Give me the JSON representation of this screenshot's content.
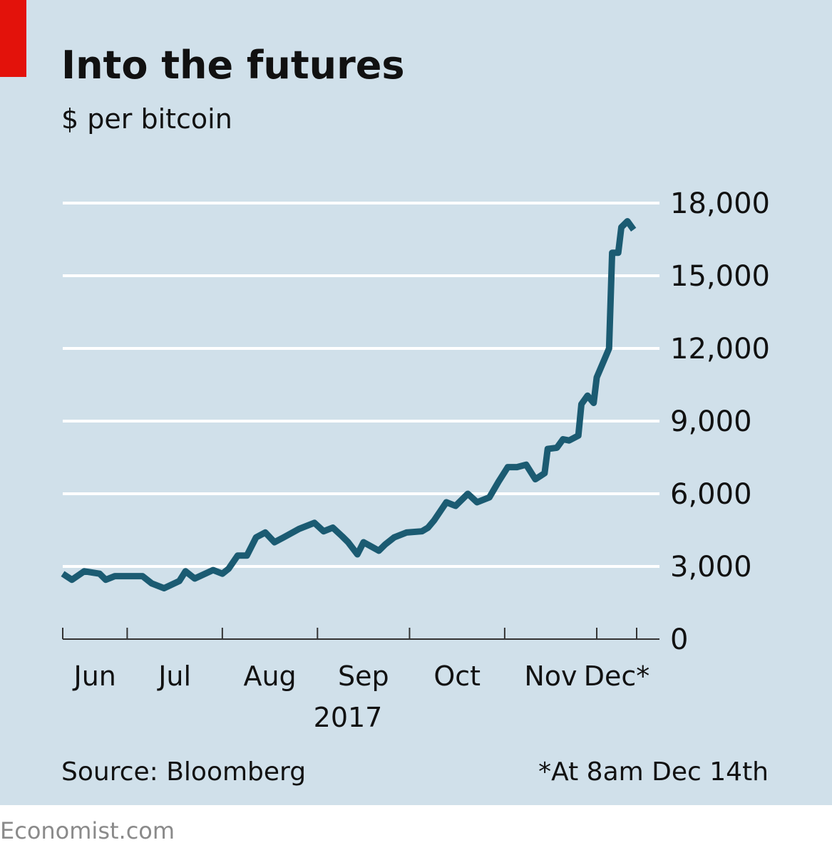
{
  "chart_data": {
    "type": "line",
    "title": "Into the futures",
    "subtitle": "$ per bitcoin",
    "source": "Source: Bloomberg",
    "note": "*At 8am Dec 14th",
    "year_label": "2017",
    "month_labels": [
      "Jun",
      "Jul",
      "Aug",
      "Sep",
      "Oct",
      "Nov",
      "Dec*"
    ],
    "xlim": [
      161,
      348
    ],
    "xticks": [
      161,
      182,
      213,
      244,
      274,
      305,
      335,
      348
    ],
    "ylim": [
      0,
      18000
    ],
    "yticks": [
      0,
      {
        "value": 3000,
        "label": "3,000"
      },
      {
        "value": 6000,
        "label": "6,000"
      },
      {
        "value": 9000,
        "label": "9,000"
      },
      {
        "value": 12000,
        "label": "12,000"
      },
      {
        "value": 15000,
        "label": "15,000"
      },
      {
        "value": 18000,
        "label": "18,000"
      }
    ],
    "grid": true,
    "series": [
      {
        "color": "#1b5b72",
        "x": [
          161,
          164,
          168,
          173,
          175,
          178,
          182,
          187,
          190,
          194,
          199,
          201,
          204,
          210,
          213,
          215,
          218,
          221,
          224,
          227,
          230,
          233,
          238,
          243,
          246,
          249,
          252,
          254,
          257,
          259,
          264,
          266,
          269,
          273,
          278,
          280,
          282,
          286,
          289,
          293,
          296,
          300,
          303,
          306,
          309,
          312,
          315,
          318,
          319,
          322,
          324,
          326,
          329,
          330,
          332,
          334,
          335,
          338,
          339,
          340,
          342,
          343,
          345,
          347
        ],
        "values": [
          2700,
          2450,
          2800,
          2700,
          2450,
          2600,
          2600,
          2600,
          2300,
          2100,
          2400,
          2800,
          2500,
          2850,
          2700,
          2900,
          3450,
          3450,
          4200,
          4400,
          4000,
          4200,
          4550,
          4800,
          4450,
          4600,
          4250,
          4000,
          3500,
          4000,
          3650,
          3900,
          4200,
          4400,
          4450,
          4600,
          4900,
          5650,
          5500,
          6000,
          5650,
          5850,
          6500,
          7100,
          7100,
          7200,
          6600,
          6850,
          7850,
          7900,
          8250,
          8200,
          8400,
          9700,
          10050,
          9750,
          10800,
          11700,
          12000,
          15950,
          15950,
          17000,
          17250,
          16900
        ]
      }
    ]
  },
  "footer": {
    "brand": "Economist.com"
  }
}
